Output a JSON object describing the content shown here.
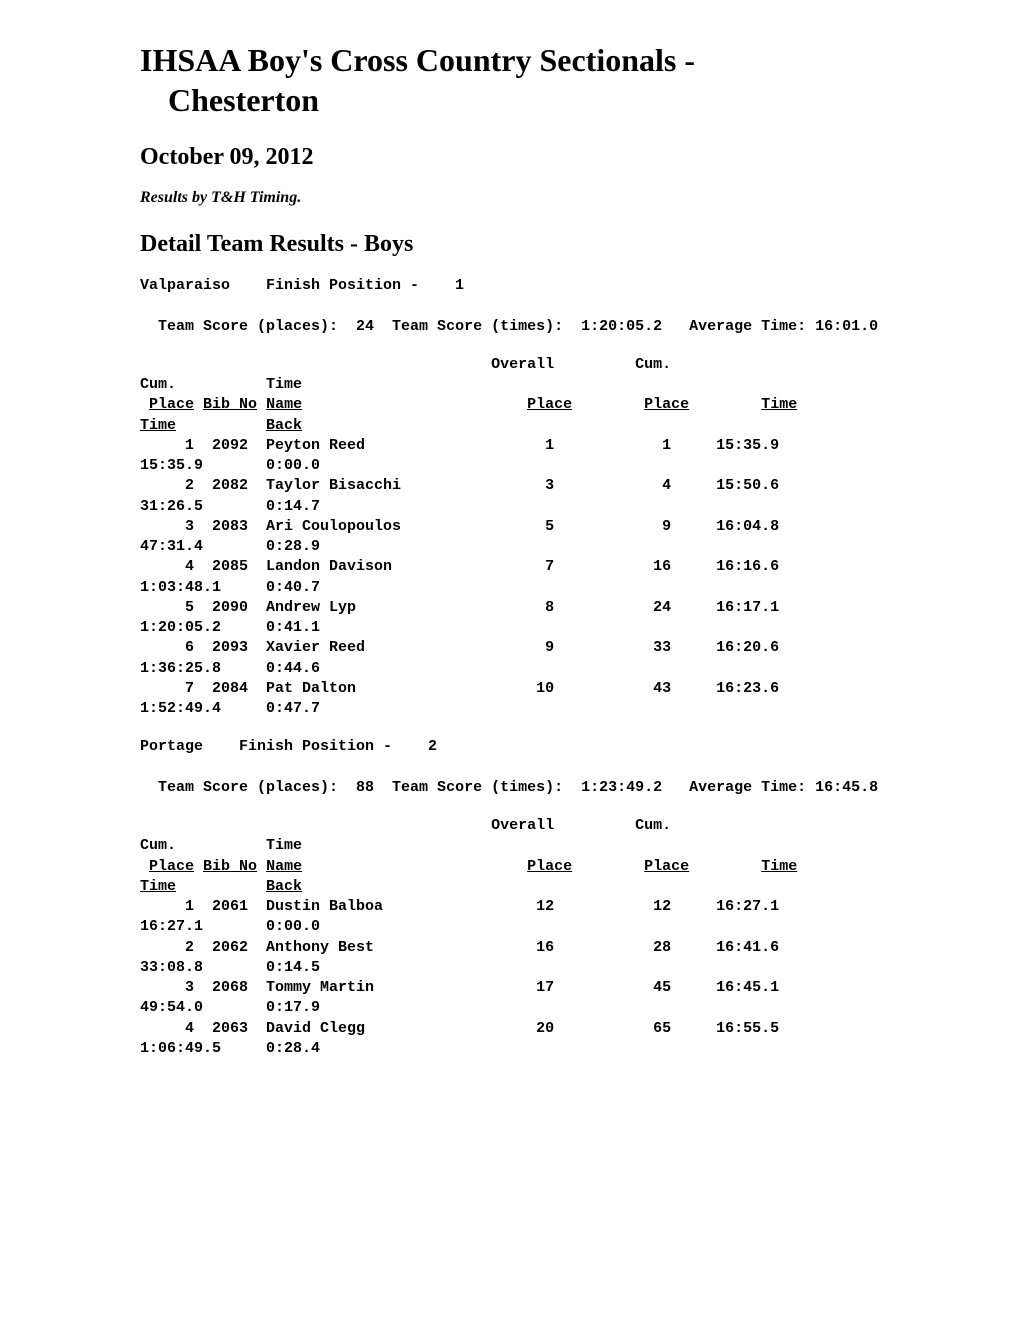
{
  "title_line1": "IHSAA Boy's Cross Country Sectionals -",
  "title_line2": "Chesterton",
  "date": "October 09, 2012",
  "byline": "Results by T&H Timing.",
  "section_heading": "Detail Team Results - Boys",
  "teams": [
    {
      "name": "Valparaiso",
      "finish_position": "1",
      "team_score_places": "24",
      "team_score_times": "1:20:05.2",
      "avg_time": "16:01.0",
      "header": {
        "place": "Place",
        "bib": "Bib No",
        "name": "Name",
        "overall": "Overall",
        "overall_place": "Place",
        "cum": "Cum.",
        "cum_place": "Place",
        "time": "Time",
        "cum_time_label": "Cum.",
        "cum_time": "Time",
        "time_back_label": "Time",
        "time_back": "Back"
      },
      "rows": [
        {
          "place": "1",
          "bib": "2092",
          "name": "Peyton Reed",
          "overall": "1",
          "cum": "1",
          "time": "15:35.9",
          "cumtime": "15:35.9",
          "back": "0:00.0"
        },
        {
          "place": "2",
          "bib": "2082",
          "name": "Taylor Bisacchi",
          "overall": "3",
          "cum": "4",
          "time": "15:50.6",
          "cumtime": "31:26.5",
          "back": "0:14.7"
        },
        {
          "place": "3",
          "bib": "2083",
          "name": "Ari Coulopoulos",
          "overall": "5",
          "cum": "9",
          "time": "16:04.8",
          "cumtime": "47:31.4",
          "back": "0:28.9"
        },
        {
          "place": "4",
          "bib": "2085",
          "name": "Landon Davison",
          "overall": "7",
          "cum": "16",
          "time": "16:16.6",
          "cumtime": "1:03:48.1",
          "back": "0:40.7"
        },
        {
          "place": "5",
          "bib": "2090",
          "name": "Andrew Lyp",
          "overall": "8",
          "cum": "24",
          "time": "16:17.1",
          "cumtime": "1:20:05.2",
          "back": "0:41.1"
        },
        {
          "place": "6",
          "bib": "2093",
          "name": "Xavier Reed",
          "overall": "9",
          "cum": "33",
          "time": "16:20.6",
          "cumtime": "1:36:25.8",
          "back": "0:44.6"
        },
        {
          "place": "7",
          "bib": "2084",
          "name": "Pat Dalton",
          "overall": "10",
          "cum": "43",
          "time": "16:23.6",
          "cumtime": "1:52:49.4",
          "back": "0:47.7"
        }
      ]
    },
    {
      "name": "Portage",
      "finish_position": "2",
      "team_score_places": "88",
      "team_score_times": "1:23:49.2",
      "avg_time": "16:45.8",
      "header": {
        "place": "Place",
        "bib": "Bib No",
        "name": "Name",
        "overall": "Overall",
        "overall_place": "Place",
        "cum": "Cum.",
        "cum_place": "Place",
        "time": "Time",
        "cum_time_label": "Cum.",
        "cum_time": "Time",
        "time_back_label": "Time",
        "time_back": "Back"
      },
      "rows": [
        {
          "place": "1",
          "bib": "2061",
          "name": "Dustin Balboa",
          "overall": "12",
          "cum": "12",
          "time": "16:27.1",
          "cumtime": "16:27.1",
          "back": "0:00.0"
        },
        {
          "place": "2",
          "bib": "2062",
          "name": "Anthony Best",
          "overall": "16",
          "cum": "28",
          "time": "16:41.6",
          "cumtime": "33:08.8",
          "back": "0:14.5"
        },
        {
          "place": "3",
          "bib": "2068",
          "name": "Tommy Martin",
          "overall": "17",
          "cum": "45",
          "time": "16:45.1",
          "cumtime": "49:54.0",
          "back": "0:17.9"
        },
        {
          "place": "4",
          "bib": "2063",
          "name": "David Clegg",
          "overall": "20",
          "cum": "65",
          "time": "16:55.5",
          "cumtime": "1:06:49.5",
          "back": "0:28.4"
        }
      ]
    }
  ],
  "labels": {
    "finish_position": "Finish Position -",
    "team_score_places": "Team Score (places):",
    "team_score_times": "Team Score (times):",
    "avg_time": "Average Time:"
  },
  "style": {
    "background_color": "#ffffff",
    "text_color": "#000000",
    "mono_font": "Courier New",
    "serif_font": "Times New Roman"
  }
}
